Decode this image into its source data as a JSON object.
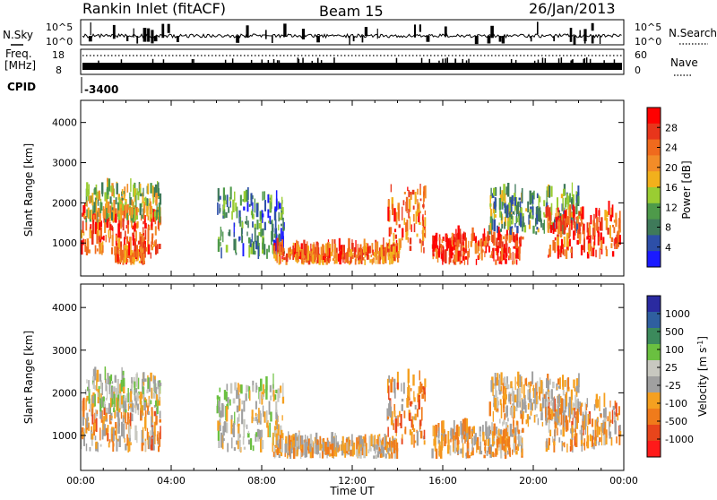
{
  "header": {
    "station": "Rankin Inlet (fitACF)",
    "beam": "Beam 15",
    "date": "26/Jan/2013"
  },
  "status_panel": {
    "nsky_label": "N.Sky",
    "nsearch_label": "N.Search",
    "nave_label": "Nave",
    "freq_label_line1": "Freq.",
    "freq_label_line2": "[MHz]",
    "cpid_label": "CPID",
    "cpid_value": "-3400",
    "noise_ticks_left": [
      "10^5",
      "10^0"
    ],
    "noise_ticks_right": [
      "10^5",
      "10^0"
    ],
    "freq_ticks": [
      "18",
      "8"
    ],
    "nave_ticks": [
      "60",
      "0"
    ]
  },
  "colors": {
    "power_scale": [
      "#1a1aff",
      "#2d4fa8",
      "#3f7a5a",
      "#4e9a4a",
      "#9acd32",
      "#f2b01c",
      "#f28c28",
      "#f06a1d",
      "#e8351b",
      "#ff0000"
    ],
    "velocity_scale": [
      "#2a2aa0",
      "#2f5fa0",
      "#3c8a5c",
      "#6ac040",
      "#c8c8c0",
      "#a0a0a0",
      "#f5a020",
      "#f07b1b",
      "#e8451b",
      "#ff1a1a"
    ]
  },
  "chart_data": [
    {
      "type": "heatmap",
      "name": "power",
      "ylabel": "Slant Range [km]",
      "ylim": [
        180,
        4550
      ],
      "yticks": [
        "1000",
        "2000",
        "3000",
        "4000"
      ],
      "yvals": [
        1000,
        2000,
        3000,
        4000
      ],
      "colorbar": {
        "label": "Power [dB]",
        "ticks": [
          "28",
          "24",
          "20",
          "16",
          "12",
          "8",
          "4"
        ],
        "range": [
          0,
          30
        ]
      },
      "scatter_regions": [
        {
          "t0": 0.0,
          "t1": 3.5,
          "r0": 600,
          "r1": 1700,
          "value": 24
        },
        {
          "t0": 0.2,
          "t1": 3.5,
          "r0": 1500,
          "r1": 2300,
          "value": 14
        },
        {
          "t0": 1.5,
          "t1": 2.8,
          "r0": 450,
          "r1": 700,
          "value": 22
        },
        {
          "t0": 6.0,
          "t1": 9.0,
          "r0": 600,
          "r1": 2100,
          "value": 8
        },
        {
          "t0": 8.5,
          "t1": 14.0,
          "r0": 450,
          "r1": 800,
          "value": 22
        },
        {
          "t0": 13.5,
          "t1": 15.2,
          "r0": 700,
          "r1": 2300,
          "value": 22
        },
        {
          "t0": 15.5,
          "t1": 19.5,
          "r0": 450,
          "r1": 1100,
          "value": 26
        },
        {
          "t0": 18.0,
          "t1": 22.0,
          "r0": 1200,
          "r1": 2200,
          "value": 10
        },
        {
          "t0": 20.5,
          "t1": 23.8,
          "r0": 600,
          "r1": 1700,
          "value": 24
        }
      ]
    },
    {
      "type": "heatmap",
      "name": "velocity",
      "ylabel": "Slant Range [km]",
      "ylim": [
        180,
        4550
      ],
      "yticks": [
        "1000",
        "2000",
        "3000",
        "4000"
      ],
      "yvals": [
        1000,
        2000,
        3000,
        4000
      ],
      "colorbar": {
        "label": "Velocity [m s",
        "label_sup": "-1",
        "label_end": "]",
        "ticks": [
          "1000",
          "500",
          "100",
          "25",
          "-25",
          "-100",
          "-500",
          "-1000"
        ],
        "range": [
          -1000,
          1000
        ]
      },
      "scatter_regions": [
        {
          "t0": 0.0,
          "t1": 3.5,
          "r0": 600,
          "r1": 1700,
          "value": -300
        },
        {
          "t0": 0.2,
          "t1": 3.5,
          "r0": 1500,
          "r1": 2300,
          "value": 0
        },
        {
          "t0": 6.0,
          "t1": 9.0,
          "r0": 600,
          "r1": 2100,
          "value": 0
        },
        {
          "t0": 8.5,
          "t1": 14.0,
          "r0": 450,
          "r1": 800,
          "value": -200
        },
        {
          "t0": 13.5,
          "t1": 15.2,
          "r0": 700,
          "r1": 2300,
          "value": -400
        },
        {
          "t0": 15.5,
          "t1": 19.5,
          "r0": 450,
          "r1": 1100,
          "value": -250
        },
        {
          "t0": 18.0,
          "t1": 22.0,
          "r0": 1200,
          "r1": 2200,
          "value": -150
        },
        {
          "t0": 20.5,
          "t1": 23.8,
          "r0": 600,
          "r1": 1700,
          "value": -300
        }
      ]
    }
  ],
  "xaxis": {
    "label": "Time UT",
    "ticks": [
      "00:00",
      "04:00",
      "08:00",
      "12:00",
      "16:00",
      "20:00",
      "00:00"
    ],
    "tick_hours": [
      0,
      4,
      8,
      12,
      16,
      20,
      24
    ],
    "range_hours": [
      0,
      24
    ]
  }
}
